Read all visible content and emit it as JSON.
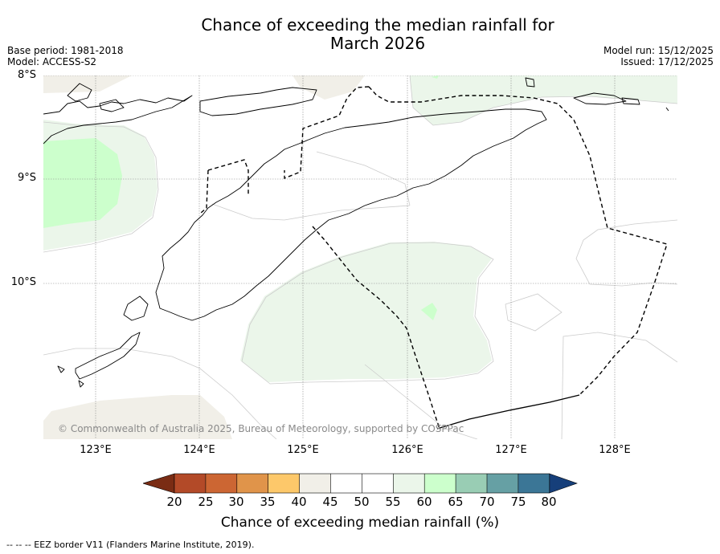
{
  "title": {
    "line1": "Chance of exceeding the median rainfall for",
    "line2": "March 2026"
  },
  "meta": {
    "base_period": "Base period: 1981-2018",
    "model": "Model: ACCESS-S2",
    "model_run": "Model run: 15/12/2025",
    "issued": "Issued: 17/12/2025"
  },
  "axes": {
    "lat_labels": [
      "8°S",
      "9°S",
      "10°S"
    ],
    "lon_labels": [
      "123°E",
      "124°E",
      "125°E",
      "126°E",
      "127°E",
      "128°E"
    ]
  },
  "copyright": "© Commonwealth of Australia 2025, Bureau of Meteorology, supported by COSPPac",
  "colorbar": {
    "title": "Chance of exceeding median rainfall (%)",
    "ticks": [
      "20",
      "25",
      "30",
      "35",
      "40",
      "45",
      "50",
      "55",
      "60",
      "65",
      "70",
      "75",
      "80"
    ],
    "colors": [
      "#7a2c14",
      "#b34a28",
      "#cc6633",
      "#e0944a",
      "#fdc86a",
      "#f1efe8",
      "#ffffff",
      "#ffffff",
      "#ebf6ea",
      "#ccffcc",
      "#99cdb4",
      "#66a0a4",
      "#3b7696",
      "#163f7a"
    ]
  },
  "eez_note": "--  --  -- EEZ border V11 (Flanders Marine Institute, 2019).",
  "map_colors": {
    "below_40_45": "#f1efe8",
    "above_55_60": "#ebf6ea",
    "above_60_65": "#ccffcc",
    "coast": "#000000",
    "contour": "#cccccc",
    "grid": "#888888"
  }
}
